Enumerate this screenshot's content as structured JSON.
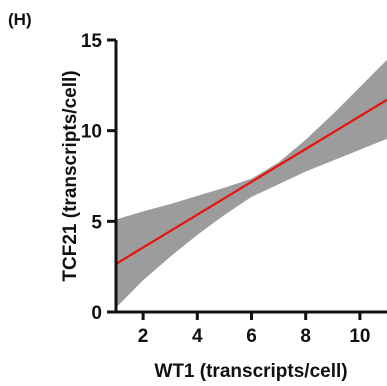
{
  "panel_label": "(H)",
  "chart_data": {
    "type": "line",
    "xlabel": "WT1 (transcripts/cell)",
    "ylabel": "TCF21 (transcripts/cell)",
    "xlim": [
      1,
      11
    ],
    "ylim": [
      0,
      15
    ],
    "x_ticks": [
      2,
      4,
      6,
      8,
      10
    ],
    "y_ticks": [
      0,
      5,
      10,
      15
    ],
    "grid": false,
    "legend": "none",
    "series": [
      {
        "x": [
          1,
          11
        ],
        "y": [
          2.65,
          11.7
        ],
        "color": "#e8120c"
      }
    ],
    "confidence_band": {
      "color": "#9c9c9c",
      "x": [
        1,
        2,
        3,
        4,
        5,
        6,
        7,
        8,
        9,
        10,
        11
      ],
      "upper": [
        5.1,
        5.55,
        5.95,
        6.4,
        6.85,
        7.35,
        8.25,
        9.5,
        10.9,
        12.4,
        13.9
      ],
      "lower": [
        0.25,
        1.75,
        3.05,
        4.25,
        5.35,
        6.35,
        7.05,
        7.75,
        8.35,
        8.95,
        9.55
      ]
    }
  }
}
